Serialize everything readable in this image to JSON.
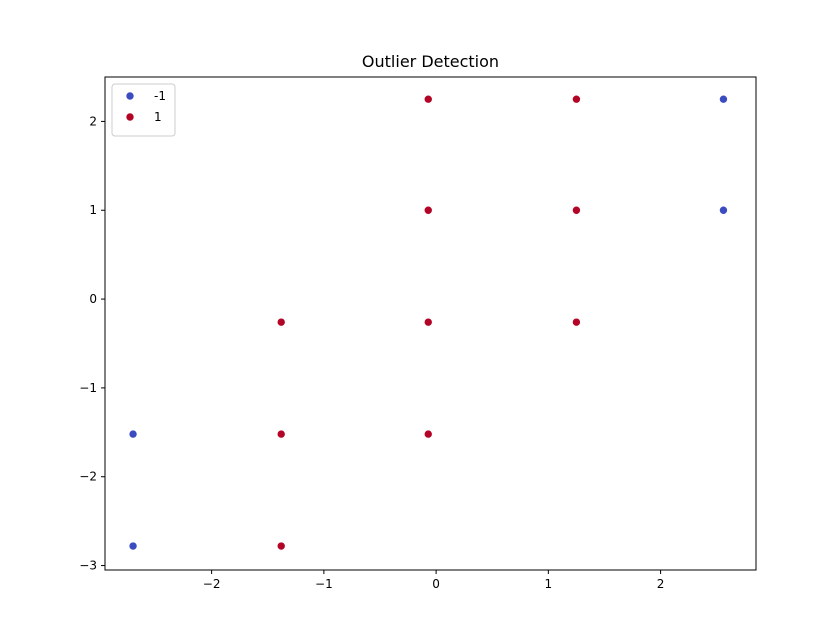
{
  "chart_data": {
    "type": "scatter",
    "title": "Outlier Detection",
    "xlabel": "",
    "ylabel": "",
    "xlim": [
      -2.95,
      2.85
    ],
    "ylim": [
      -3.05,
      2.5
    ],
    "xticks": [
      -2,
      -1,
      0,
      1,
      2
    ],
    "yticks": [
      -3,
      -2,
      -1,
      0,
      1,
      2
    ],
    "xtick_labels": [
      "−2",
      "−1",
      "0",
      "1",
      "2"
    ],
    "ytick_labels": [
      "−3",
      "−2",
      "−1",
      "0",
      "1",
      "2"
    ],
    "grid": false,
    "legend_placement": "top-left",
    "series": [
      {
        "name": "-1",
        "color": "#3b4cc0",
        "points": [
          {
            "x": -2.7,
            "y": -2.78
          },
          {
            "x": -2.7,
            "y": -1.52
          },
          {
            "x": 2.56,
            "y": 1.0
          },
          {
            "x": 2.56,
            "y": 2.25
          }
        ]
      },
      {
        "name": "1",
        "color": "#b40426",
        "points": [
          {
            "x": -1.38,
            "y": -2.78
          },
          {
            "x": -1.38,
            "y": -1.52
          },
          {
            "x": -1.38,
            "y": -0.26
          },
          {
            "x": -0.07,
            "y": -1.52
          },
          {
            "x": -0.07,
            "y": -0.26
          },
          {
            "x": -0.07,
            "y": 1.0
          },
          {
            "x": -0.07,
            "y": 2.25
          },
          {
            "x": 1.25,
            "y": -0.26
          },
          {
            "x": 1.25,
            "y": 1.0
          },
          {
            "x": 1.25,
            "y": 2.25
          }
        ]
      }
    ]
  }
}
